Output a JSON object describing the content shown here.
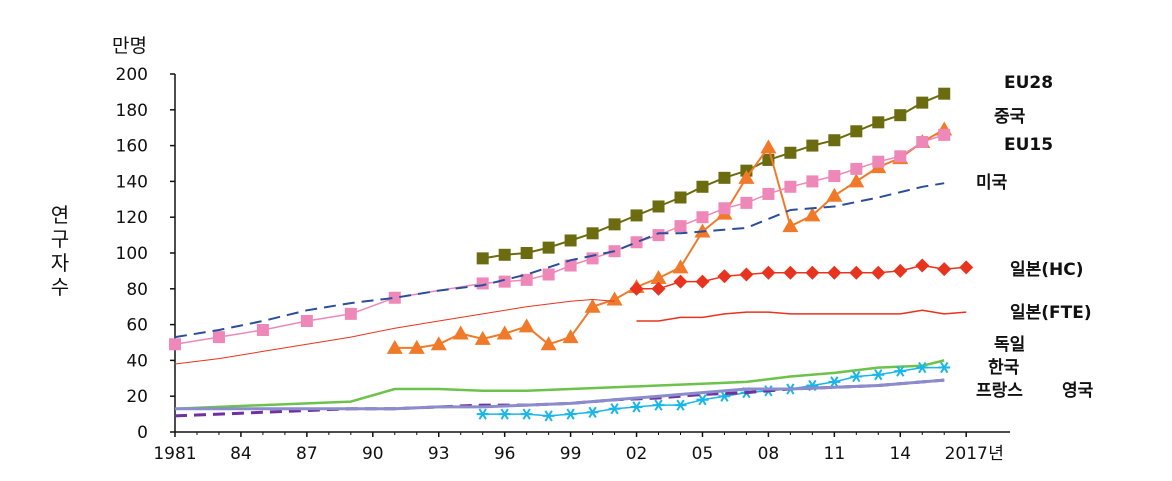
{
  "chart_data": {
    "type": "line",
    "y_unit": "만명",
    "ylabel": "연구자수",
    "x_unit": "년",
    "ylim": [
      0,
      200
    ],
    "xlim": [
      1981,
      2017
    ],
    "y_ticks": [
      "0",
      "20",
      "40",
      "60",
      "80",
      "100",
      "120",
      "140",
      "160",
      "180",
      "200"
    ],
    "x_ticks": [
      {
        "year": 1981,
        "label": "1981"
      },
      {
        "year": 1984,
        "label": "84"
      },
      {
        "year": 1987,
        "label": "87"
      },
      {
        "year": 1990,
        "label": "90"
      },
      {
        "year": 1993,
        "label": "93"
      },
      {
        "year": 1996,
        "label": "96"
      },
      {
        "year": 1999,
        "label": "99"
      },
      {
        "year": 2002,
        "label": "02"
      },
      {
        "year": 2005,
        "label": "05"
      },
      {
        "year": 2008,
        "label": "08"
      },
      {
        "year": 2011,
        "label": "11"
      },
      {
        "year": 2014,
        "label": "14"
      },
      {
        "year": 2017,
        "label": "2017"
      }
    ],
    "series": [
      {
        "name": "EU28",
        "color": "#6b6b10",
        "marker": "square",
        "dash": "solid",
        "width": 2,
        "x": [
          1995,
          1996,
          1997,
          1998,
          1999,
          2000,
          2001,
          2002,
          2003,
          2004,
          2005,
          2006,
          2007,
          2008,
          2009,
          2010,
          2011,
          2012,
          2013,
          2014,
          2015,
          2016
        ],
        "y": [
          97,
          99,
          100,
          103,
          107,
          111,
          116,
          121,
          126,
          131,
          137,
          142,
          146,
          152,
          156,
          160,
          163,
          168,
          173,
          177,
          184,
          189
        ]
      },
      {
        "name": "중국",
        "color": "#f07a2a",
        "marker": "triangle",
        "dash": "solid",
        "width": 2,
        "x": [
          1991,
          1992,
          1993,
          1994,
          1995,
          1996,
          1997,
          1998,
          1999,
          2000,
          2001,
          2002,
          2003,
          2004,
          2005,
          2006,
          2007,
          2008,
          2009,
          2010,
          2011,
          2012,
          2013,
          2014,
          2015,
          2016
        ],
        "y": [
          47,
          47,
          49,
          55,
          52,
          55,
          59,
          49,
          53,
          70,
          74,
          81,
          86,
          92,
          112,
          122,
          142,
          159,
          115,
          121,
          132,
          140,
          148,
          153,
          162,
          169
        ]
      },
      {
        "name": "EU15",
        "color": "#ee88b8",
        "marker": "square",
        "dash": "solid",
        "width": 1.5,
        "x": [
          1981,
          1983,
          1985,
          1987,
          1989,
          1991,
          1995,
          1996,
          1997,
          1998,
          1999,
          2000,
          2001,
          2002,
          2003,
          2004,
          2005,
          2006,
          2007,
          2008,
          2009,
          2010,
          2011,
          2012,
          2013,
          2014,
          2015,
          2016
        ],
        "y": [
          49,
          53,
          57,
          62,
          66,
          75,
          83,
          84,
          85,
          88,
          93,
          97,
          101,
          106,
          110,
          115,
          120,
          125,
          128,
          133,
          137,
          140,
          143,
          147,
          151,
          154,
          162,
          166
        ]
      },
      {
        "name": "미국",
        "color": "#2a4e9a",
        "marker": "none",
        "dash": "dash",
        "width": 2,
        "x": [
          1981,
          1983,
          1985,
          1987,
          1989,
          1991,
          1993,
          1995,
          1997,
          1999,
          2001,
          2003,
          2004,
          2005,
          2007,
          2009,
          2011,
          2013,
          2015,
          2016
        ],
        "y": [
          53,
          57,
          62,
          68,
          72,
          75,
          79,
          82,
          88,
          96,
          101,
          111,
          111,
          112,
          114,
          124,
          126,
          131,
          137,
          139
        ]
      },
      {
        "name": "일본(HC)",
        "color": "#e8331f",
        "marker": "diamond",
        "dash": "solid",
        "width": 1.5,
        "x": [
          2002,
          2003,
          2004,
          2005,
          2006,
          2007,
          2008,
          2009,
          2010,
          2011,
          2012,
          2013,
          2014,
          2015,
          2016,
          2017
        ],
        "y": [
          80,
          80,
          84,
          84,
          87,
          88,
          89,
          89,
          89,
          89,
          89,
          89,
          90,
          93,
          91,
          92
        ]
      },
      {
        "name": "일본(FTE)",
        "color": "#e8331f",
        "marker": "none",
        "dash": "solid",
        "width": 1.5,
        "x": [
          2002,
          2003,
          2004,
          2005,
          2006,
          2007,
          2008,
          2009,
          2010,
          2011,
          2012,
          2013,
          2014,
          2015,
          2016,
          2017
        ],
        "y": [
          62,
          62,
          64,
          64,
          66,
          67,
          67,
          66,
          66,
          66,
          66,
          66,
          66,
          68,
          66,
          67
        ]
      },
      {
        "name": "",
        "color": "#e8331f",
        "marker": "none",
        "dash": "solid",
        "width": 1,
        "x": [
          1981,
          1983,
          1985,
          1987,
          1989,
          1991,
          1993,
          1995,
          1997,
          1999,
          2000,
          2001
        ],
        "y": [
          38,
          41,
          45,
          49,
          53,
          58,
          62,
          66,
          70,
          73,
          74,
          73
        ]
      },
      {
        "name": "독일",
        "color": "#6cc24a",
        "marker": "none",
        "dash": "solid",
        "width": 2.5,
        "x": [
          1981,
          1983,
          1985,
          1987,
          1989,
          1991,
          1993,
          1995,
          1997,
          1999,
          2001,
          2003,
          2005,
          2007,
          2009,
          2011,
          2013,
          2015,
          2016
        ],
        "y": [
          13,
          14,
          15,
          16,
          17,
          24,
          24,
          23,
          23,
          24,
          25,
          26,
          27,
          28,
          31,
          33,
          36,
          37,
          40
        ]
      },
      {
        "name": "한국",
        "color": "#19b6e8",
        "marker": "asterisk",
        "dash": "solid",
        "width": 1.5,
        "x": [
          1995,
          1996,
          1997,
          1998,
          1999,
          2000,
          2001,
          2002,
          2003,
          2004,
          2005,
          2006,
          2007,
          2008,
          2009,
          2010,
          2011,
          2012,
          2013,
          2014,
          2015,
          2016
        ],
        "y": [
          10,
          10,
          10,
          9,
          10,
          11,
          13,
          14,
          15,
          15,
          18,
          20,
          22,
          23,
          24,
          26,
          28,
          31,
          32,
          34,
          36,
          36
        ]
      },
      {
        "name": "프랑스",
        "color": "#7030a0",
        "marker": "none",
        "dash": "dash",
        "width": 3,
        "x": [
          1981,
          1983,
          1985,
          1987,
          1989,
          1991,
          1993,
          1995,
          1997,
          1999,
          2001,
          2003,
          2005,
          2007,
          2009,
          2011,
          2013,
          2015,
          2016
        ],
        "y": [
          9,
          10,
          11,
          12,
          13,
          13,
          14,
          15,
          15,
          16,
          18,
          19,
          21,
          22,
          24,
          25,
          26,
          28,
          29
        ]
      },
      {
        "name": "영국",
        "color": "#8a8ccc",
        "marker": "none",
        "dash": "solid",
        "width": 3,
        "x": [
          1981,
          1983,
          1985,
          1987,
          1989,
          1991,
          1993,
          1995,
          1997,
          1999,
          2001,
          2003,
          2005,
          2007,
          2009,
          2011,
          2013,
          2015,
          2016
        ],
        "y": [
          13,
          13,
          13,
          13,
          13,
          13,
          14,
          14,
          15,
          16,
          18,
          20,
          22,
          24,
          24,
          25,
          26,
          28,
          29
        ]
      }
    ],
    "series_labels": [
      {
        "text": "EU28",
        "series": "EU28"
      },
      {
        "text": "중국",
        "series": "중국"
      },
      {
        "text": "EU15",
        "series": "EU15"
      },
      {
        "text": "미국",
        "series": "미국"
      },
      {
        "text": "일본(HC)",
        "series": "일본(HC)"
      },
      {
        "text": "일본(FTE)",
        "series": "일본(FTE)"
      },
      {
        "text": "독일",
        "series": "독일"
      },
      {
        "text": "한국",
        "series": "한국"
      },
      {
        "text": "프랑스",
        "series": "프랑스"
      },
      {
        "text": "영국",
        "series": "영국"
      }
    ],
    "grid": false,
    "legend": "inline-right"
  }
}
